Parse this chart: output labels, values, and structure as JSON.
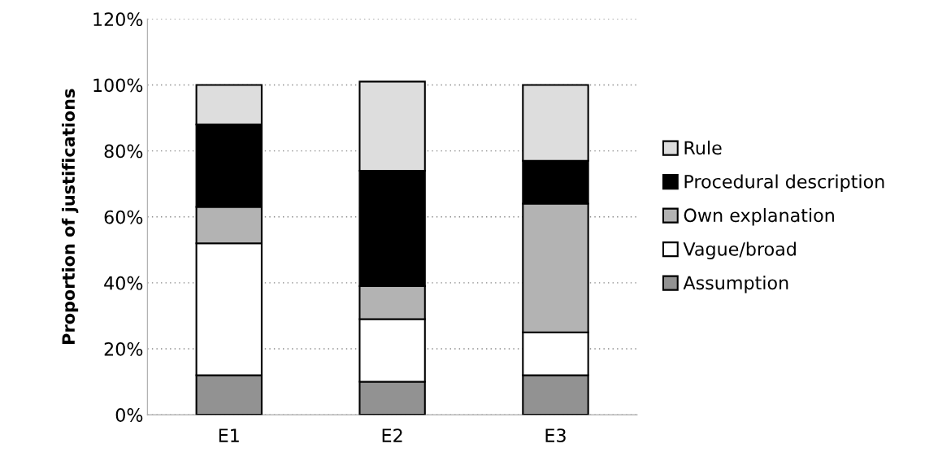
{
  "chart_data": {
    "type": "bar",
    "stacked": true,
    "ylabel": "Proportion of justifications",
    "categories": [
      "E1",
      "E2",
      "E3"
    ],
    "series": [
      {
        "name": "Assumption",
        "color": "#929292",
        "values": [
          12,
          10,
          12
        ]
      },
      {
        "name": "Vague/broad",
        "color": "#ffffff",
        "values": [
          40,
          19,
          13
        ]
      },
      {
        "name": "Own explanation",
        "color": "#b3b3b3",
        "values": [
          11,
          10,
          39
        ]
      },
      {
        "name": "Procedural description",
        "color": "#000000",
        "values": [
          25,
          35,
          13
        ]
      },
      {
        "name": "Rule",
        "color": "#dddddd",
        "values": [
          12,
          27,
          23
        ]
      }
    ],
    "ylim": [
      0,
      120
    ],
    "yticks": [
      {
        "value": 0,
        "label": "0%"
      },
      {
        "value": 20,
        "label": "20%"
      },
      {
        "value": 40,
        "label": "40%"
      },
      {
        "value": 60,
        "label": "60%"
      },
      {
        "value": 80,
        "label": "80%"
      },
      {
        "value": 100,
        "label": "100%"
      },
      {
        "value": 120,
        "label": "120%"
      }
    ],
    "grid": "y",
    "legend": "right"
  }
}
